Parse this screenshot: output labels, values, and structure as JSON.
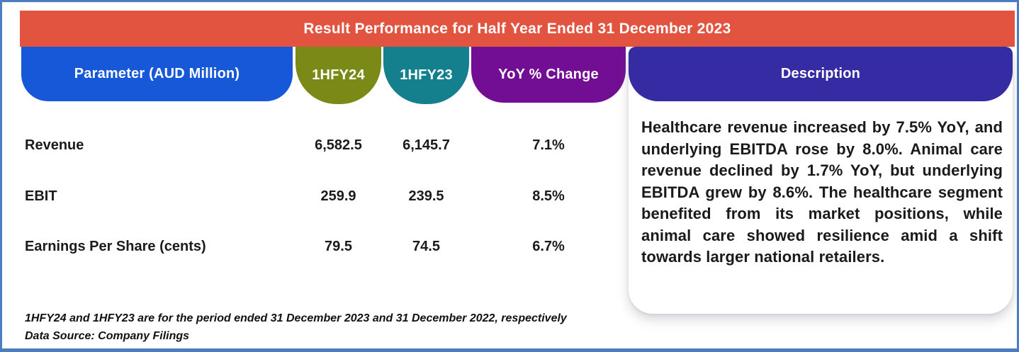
{
  "title": "Result Performance for Half Year Ended 31 December 2023",
  "table": {
    "columns": [
      {
        "label": "Parameter (AUD Million)",
        "color": "#1758D8"
      },
      {
        "label": "1HFY24",
        "color": "#7B8A16"
      },
      {
        "label": "1HFY23",
        "color": "#15808D"
      },
      {
        "label": "YoY % Change",
        "color": "#720E93"
      }
    ],
    "rows": [
      {
        "parameter": "Revenue",
        "hfy24": "6,582.5",
        "hfy23": "6,145.7",
        "yoy": "7.1%"
      },
      {
        "parameter": "EBIT",
        "hfy24": "259.9",
        "hfy23": "239.5",
        "yoy": "8.5%"
      },
      {
        "parameter": "Earnings Per Share (cents)",
        "hfy24": "79.5",
        "hfy23": "74.5",
        "yoy": "6.7%"
      }
    ]
  },
  "description": {
    "header": "Description",
    "header_color": "#352CA3",
    "text": "Healthcare revenue increased by 7.5% YoY, and underlying EBITDA rose by 8.0%. Animal care revenue declined by 1.7% YoY, but underlying EBITDA grew by 8.6%. The healthcare segment benefited from its market positions, while animal care showed resilience amid a shift towards larger national retailers."
  },
  "footnotes": [
    "1HFY24 and 1HFY23 are for the period ended 31 December 2023 and 31 December 2022, respectively",
    "Data Source: Company Filings"
  ],
  "colors": {
    "frame_border": "#4C7CC2",
    "title_bar": "#E2543F",
    "card_background": "#FFFFFF",
    "text": "#1B1B1B"
  },
  "chart_data": {
    "type": "table",
    "title": "Result Performance for Half Year Ended 31 December 2023",
    "columns": [
      "Parameter (AUD Million)",
      "1HFY24",
      "1HFY23",
      "YoY % Change"
    ],
    "rows": [
      [
        "Revenue",
        6582.5,
        6145.7,
        "7.1%"
      ],
      [
        "EBIT",
        259.9,
        239.5,
        "8.5%"
      ],
      [
        "Earnings Per Share (cents)",
        79.5,
        74.5,
        "6.7%"
      ]
    ],
    "notes": [
      "1HFY24 and 1HFY23 are for the period ended 31 December 2023 and 31 December 2022, respectively",
      "Data Source: Company Filings"
    ]
  }
}
